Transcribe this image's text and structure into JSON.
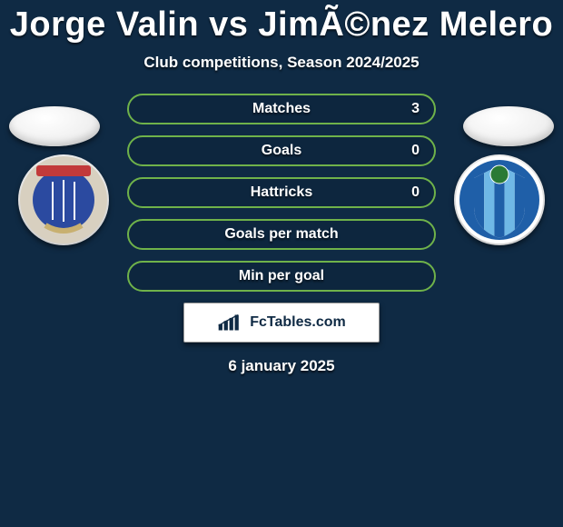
{
  "title_text": "Jorge Valin vs JimÃ©nez Melero",
  "subtitle_text": "Club competitions, Season 2024/2025",
  "date_text": "6 january 2025",
  "row_border_color": "#6fb24a",
  "row_text_color": "#ffffff",
  "background_color": "#0f2a44",
  "watermark_label": "FcTables.com",
  "stats": [
    {
      "label": "Matches",
      "value": "3"
    },
    {
      "label": "Goals",
      "value": "0"
    },
    {
      "label": "Hattricks",
      "value": "0"
    },
    {
      "label": "Goals per match",
      "value": ""
    },
    {
      "label": "Min per goal",
      "value": ""
    }
  ],
  "crest_left": {
    "ring": "#d8d0c0",
    "field": "#2b4aa0",
    "banner": "#c23a3a",
    "banner_text_color": "#ffffff"
  },
  "crest_right": {
    "ring": "#ffffff",
    "outer": "#1f5fa8",
    "stripes": [
      "#1f5fa8",
      "#6fb8e6"
    ],
    "ball": "#2a7a35"
  }
}
